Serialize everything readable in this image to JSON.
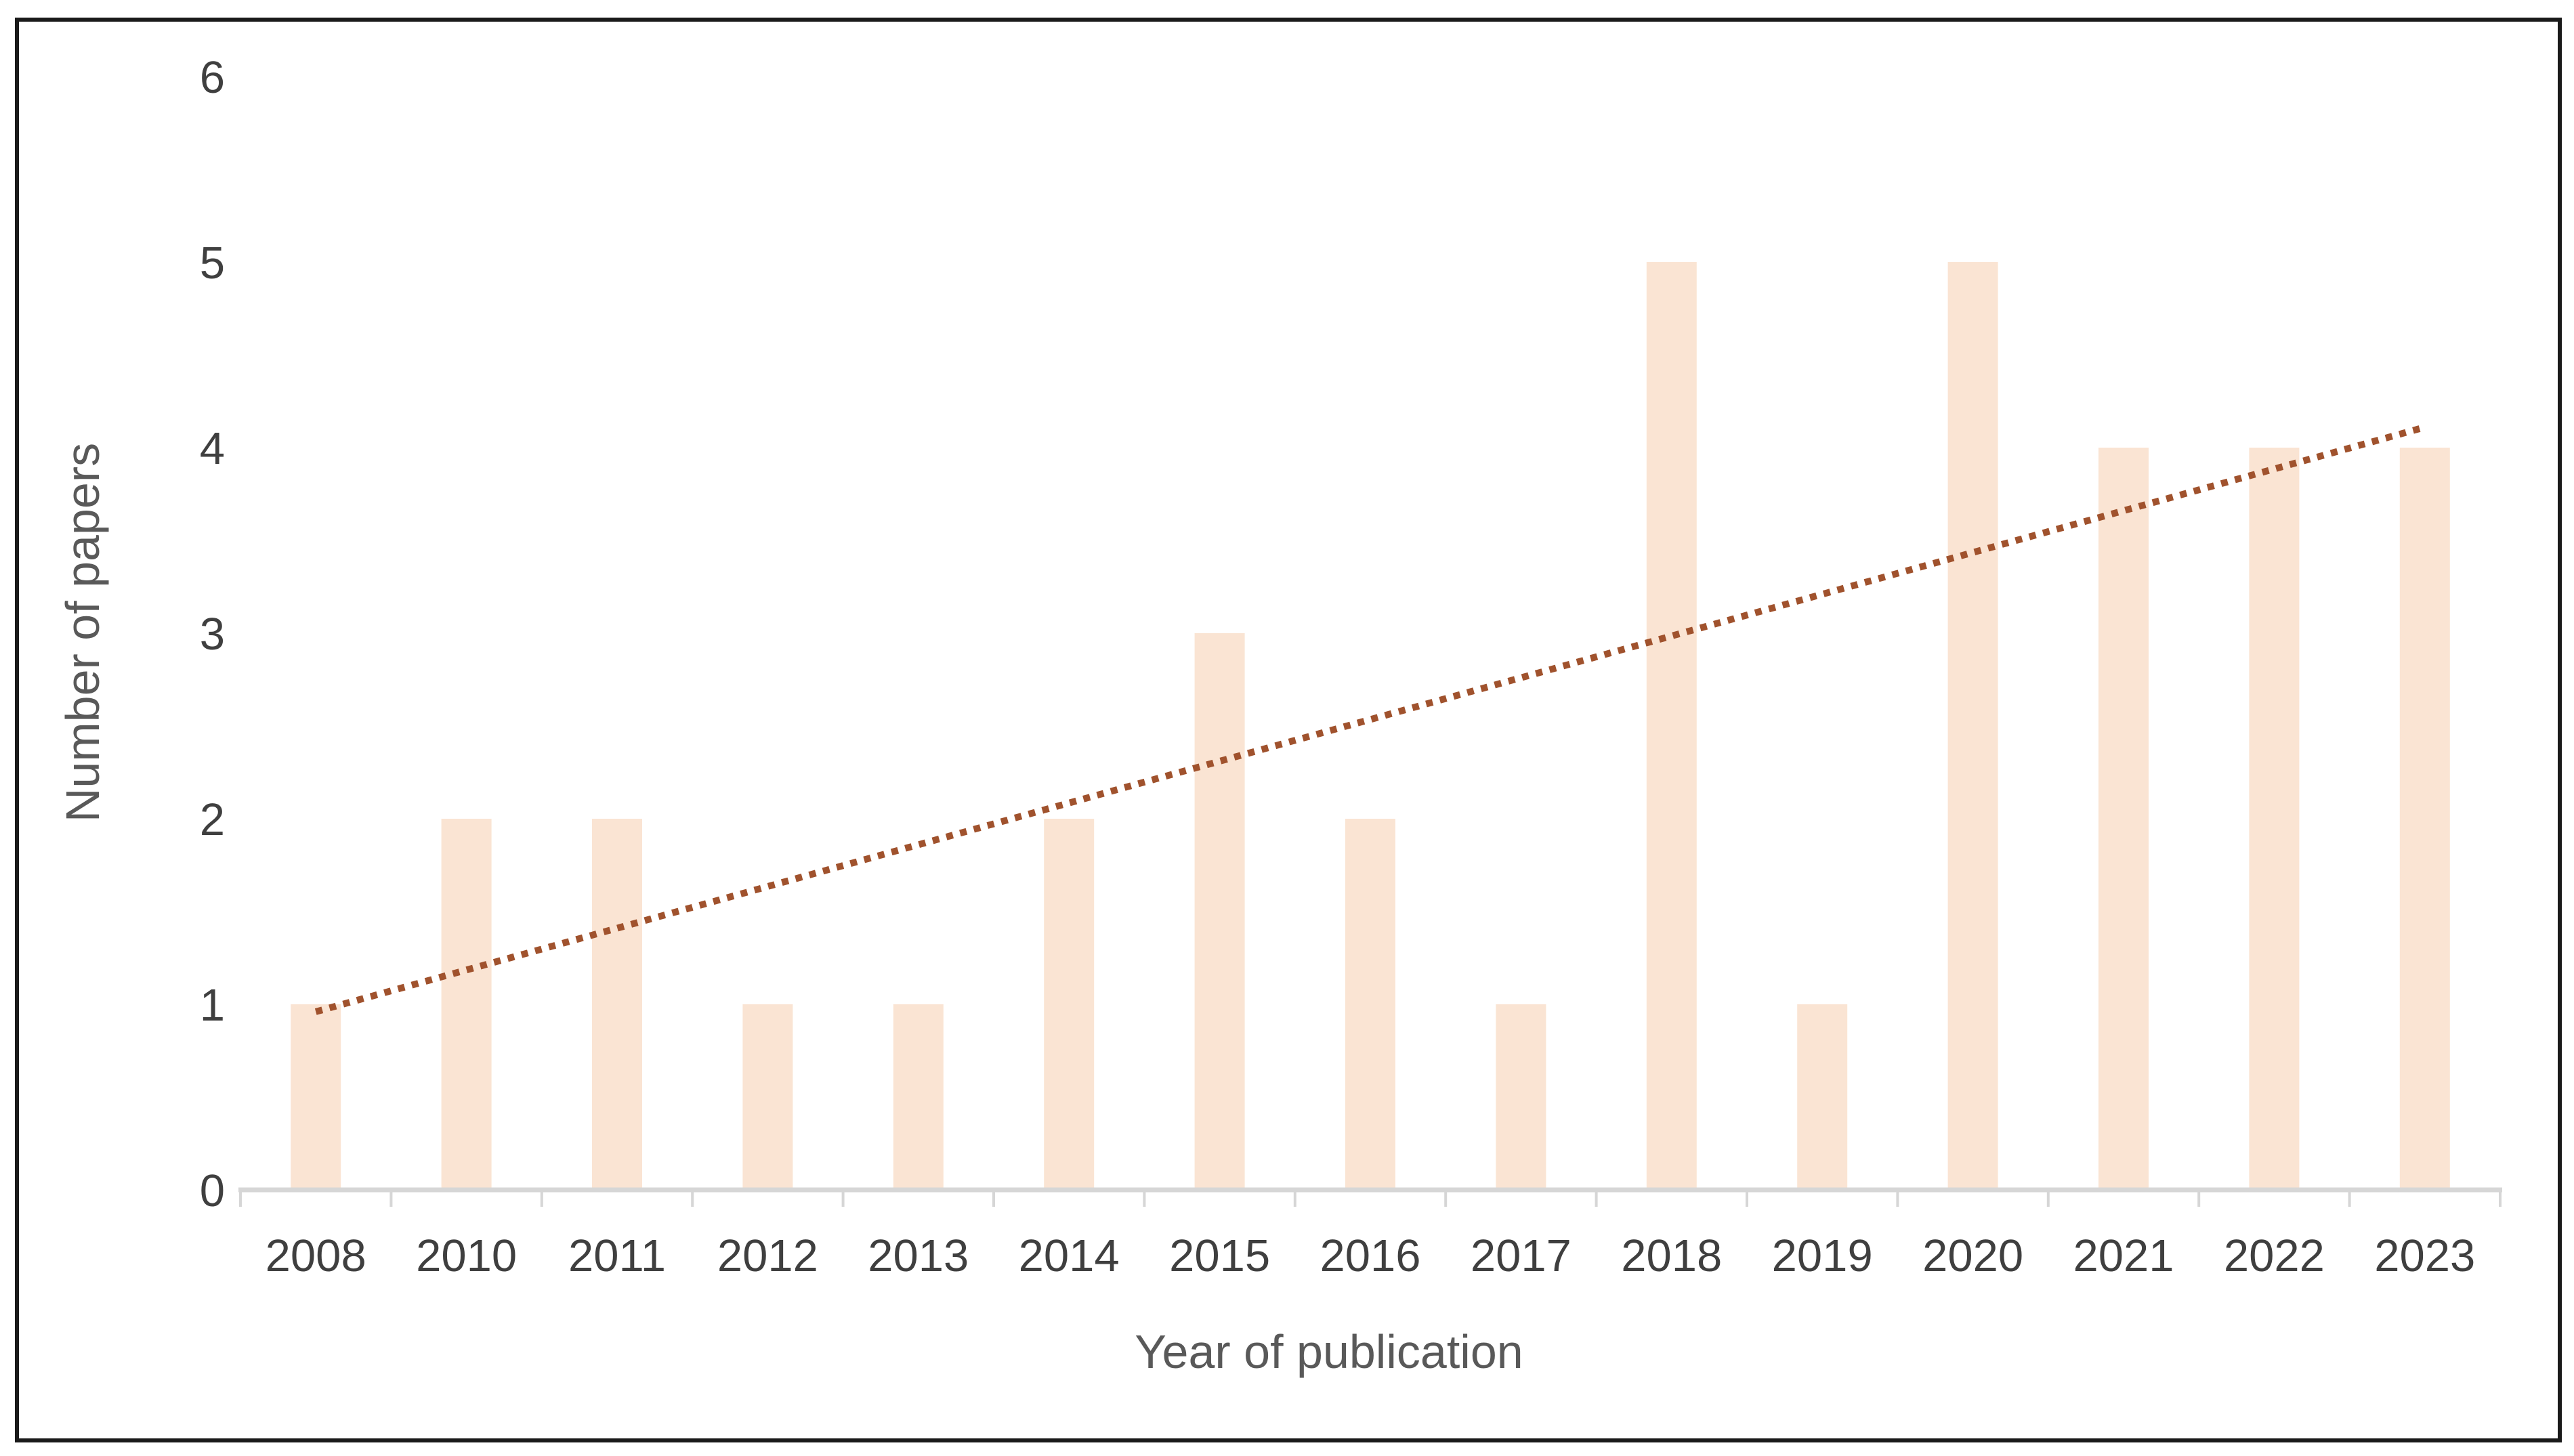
{
  "figure": {
    "background": "#ffffff",
    "border_color": "#1a1a1a"
  },
  "chart_data": {
    "type": "bar",
    "title": "",
    "xlabel": "Year of publication",
    "ylabel": "Number of papers",
    "categories": [
      "2008",
      "2010",
      "2011",
      "2012",
      "2013",
      "2014",
      "2015",
      "2016",
      "2017",
      "2018",
      "2019",
      "2020",
      "2021",
      "2022",
      "2023"
    ],
    "values": [
      1,
      2,
      2,
      1,
      1,
      2,
      3,
      2,
      1,
      5,
      1,
      5,
      4,
      4,
      4
    ],
    "ylim": [
      0,
      6
    ],
    "yticks": [
      0,
      1,
      2,
      3,
      4,
      5,
      6
    ],
    "grid": false,
    "legend": "none",
    "bar_color": "#FAE4D3",
    "axis_line_color": "#D6D6D6",
    "tick_label_color": "#3F3F3F",
    "axis_title_color": "#595959",
    "trendline": {
      "type": "linear",
      "style": "dotted",
      "color": "#A0522D",
      "start_value": 0.96,
      "end_value": 4.11
    }
  }
}
